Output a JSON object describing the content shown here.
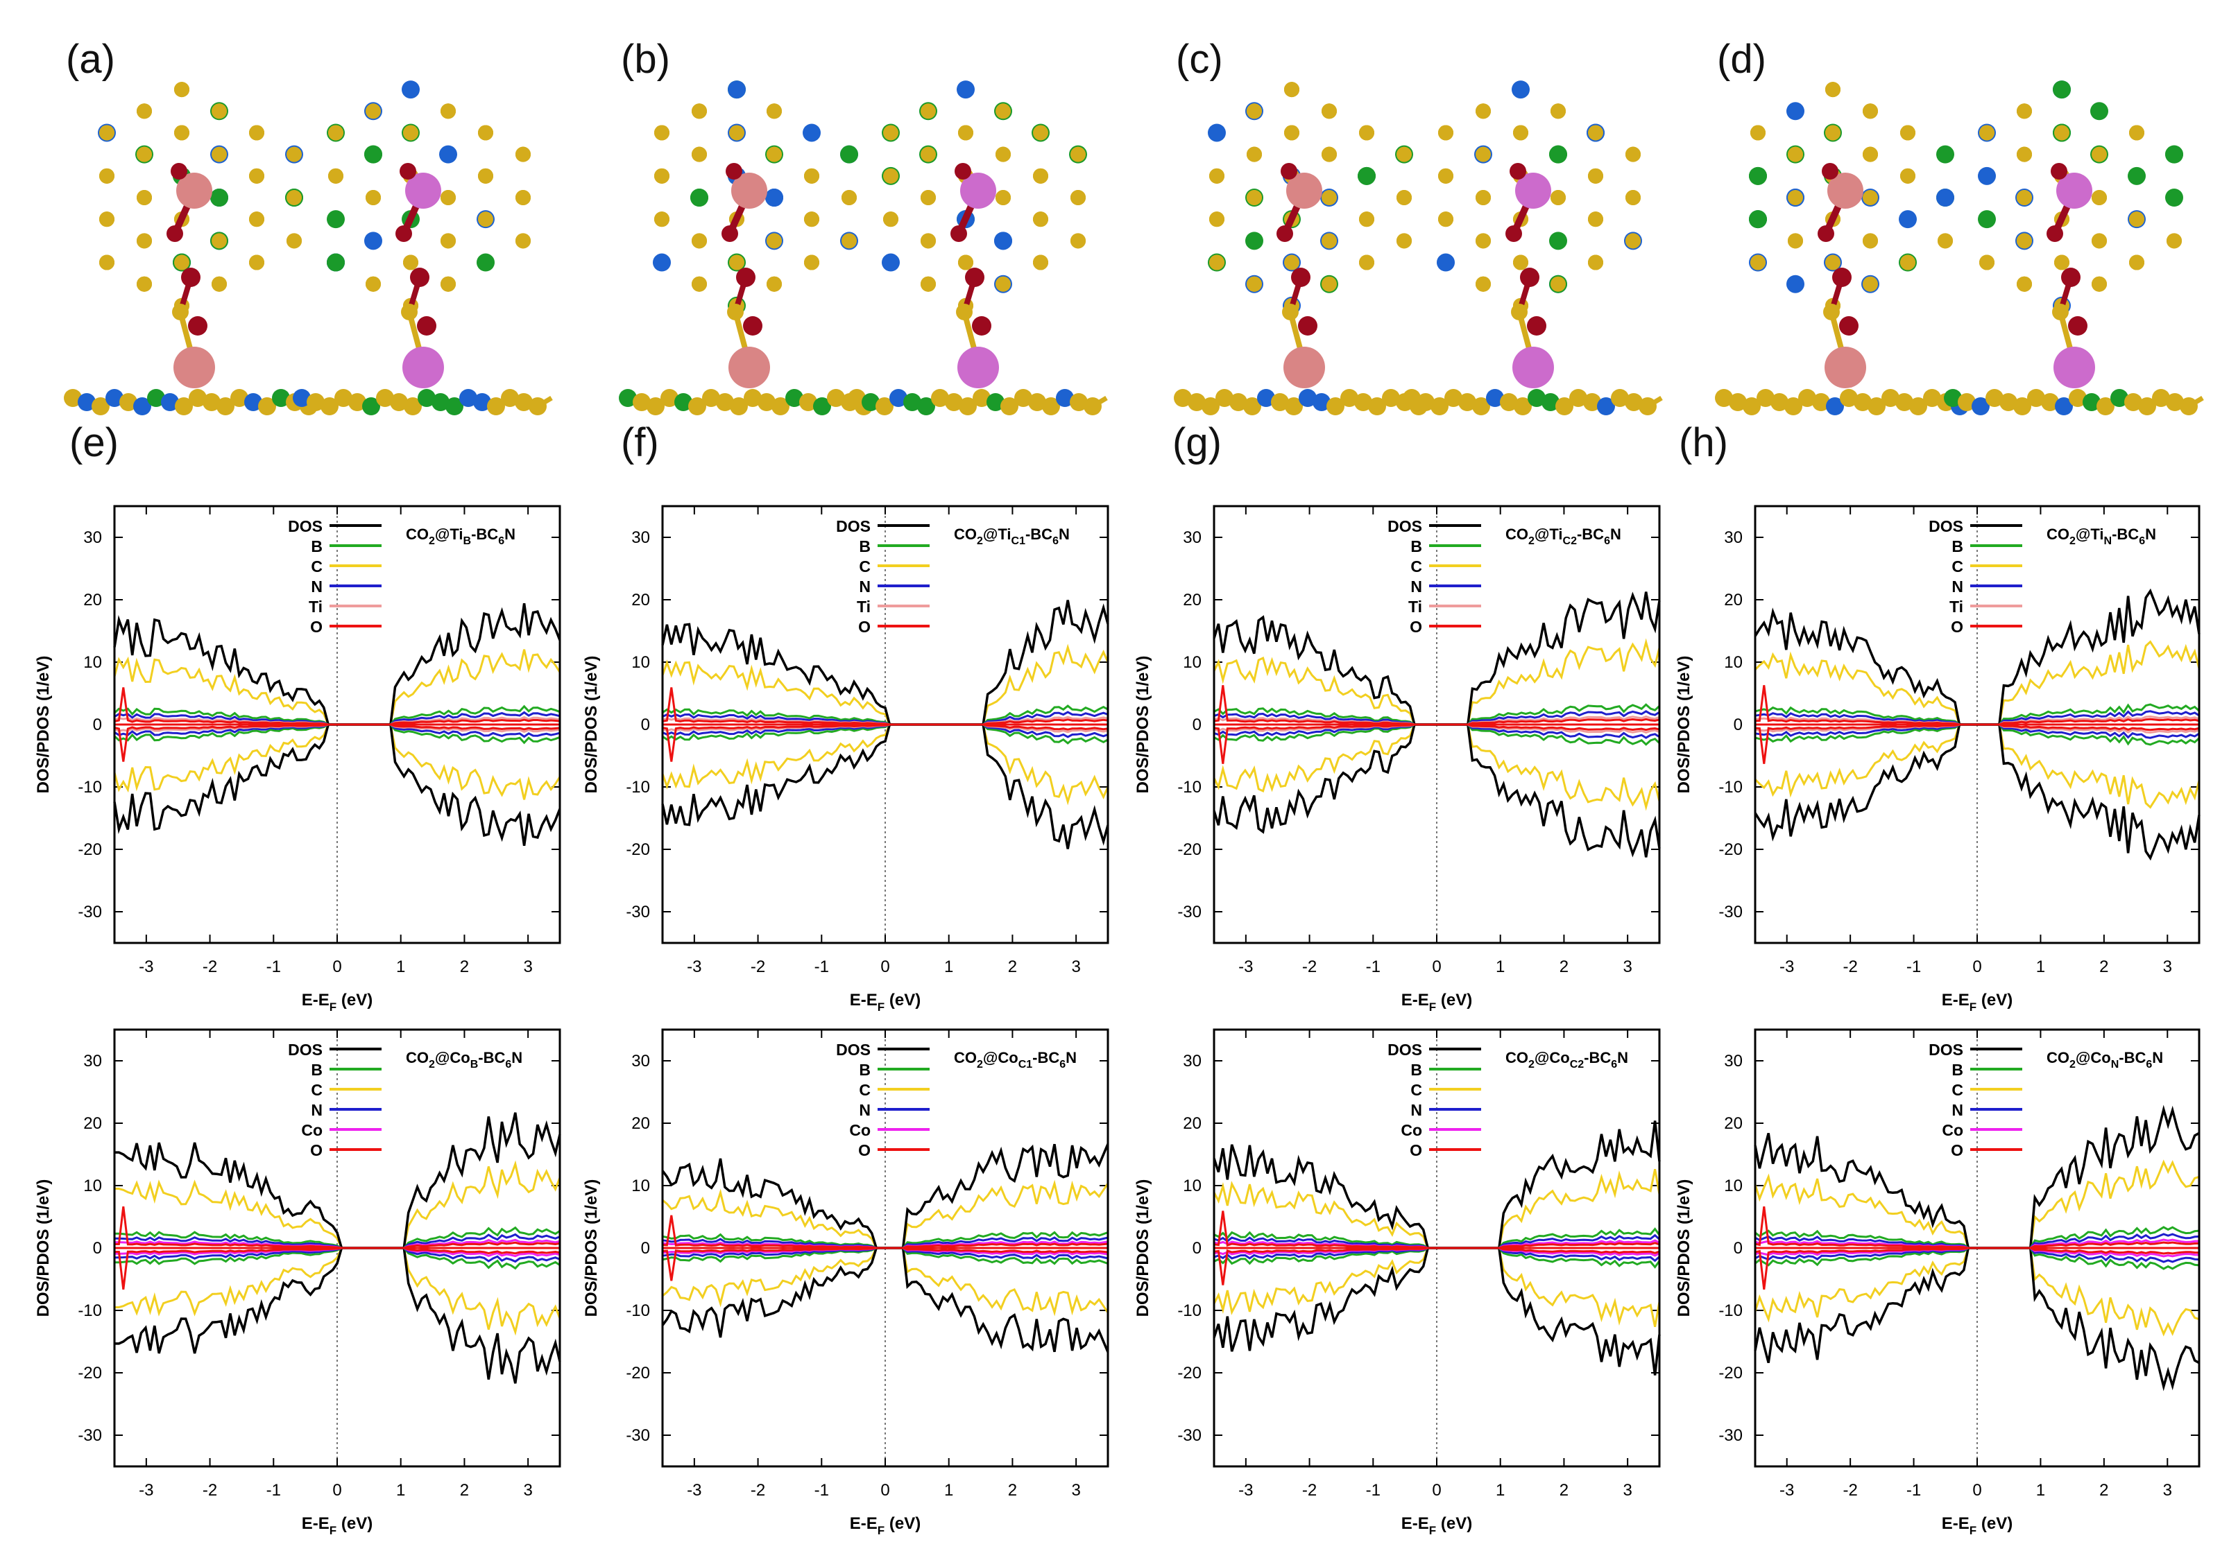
{
  "structure_panels": [
    {
      "label": "(a)",
      "site": "B"
    },
    {
      "label": "(b)",
      "site": "C1"
    },
    {
      "label": "(c)",
      "site": "C2"
    },
    {
      "label": "(d)",
      "site": "N"
    }
  ],
  "colors": {
    "carbon": "#d4ac1c",
    "boron": "#1a9a2a",
    "nitrogen": "#1d62d0",
    "oxygen": "#9b0a1e",
    "titanium": "#d98585",
    "cobalt": "#cc6bcc",
    "DOS": "#000000",
    "B": "#22aa22",
    "C": "#f2cf20",
    "N": "#1f1fcc",
    "Ti": "#ef9c9c",
    "Co": "#ee22ee",
    "O": "#ee1111"
  },
  "chart_data": [
    {
      "panel": "(e)",
      "type": "line",
      "system": "CO2@TiB-BC6N",
      "title_main": "CO",
      "title_sub1": "2",
      "title_mid": "@Ti",
      "title_sub2": "B",
      "title_end": "-BC",
      "title_sub3": "6",
      "title_tail": "N",
      "metal": "Ti",
      "xlabel": "E-E",
      "xlabel_sub": "F",
      "xlabel_unit": " (eV)",
      "ylabel": "DOS/PDOS (1/eV)",
      "xlim": [
        -3.5,
        3.5
      ],
      "ylim": [
        -35,
        35
      ],
      "xticks": [
        -3,
        -2,
        -1,
        0,
        1,
        2,
        3
      ],
      "yticks": [
        -30,
        -20,
        -10,
        0,
        10,
        20,
        30
      ],
      "legend": [
        "DOS",
        "B",
        "C",
        "N",
        "Ti",
        "O"
      ],
      "vb_edge": -0.2,
      "cb_edge": 0.9,
      "peak_dos": 17
    },
    {
      "panel": "(f)",
      "type": "line",
      "system": "CO2@TiC1-BC6N",
      "title_main": "CO",
      "title_sub1": "2",
      "title_mid": "@Ti",
      "title_sub2": "C1",
      "title_end": "-BC",
      "title_sub3": "6",
      "title_tail": "N",
      "metal": "Ti",
      "xlabel": "E-E",
      "xlabel_sub": "F",
      "xlabel_unit": " (eV)",
      "ylabel": "DOS/PDOS (1/eV)",
      "xlim": [
        -3.5,
        3.5
      ],
      "ylim": [
        -35,
        35
      ],
      "xticks": [
        -3,
        -2,
        -1,
        0,
        1,
        2,
        3
      ],
      "yticks": [
        -30,
        -20,
        -10,
        0,
        10,
        20,
        30
      ],
      "legend": [
        "DOS",
        "B",
        "C",
        "N",
        "Ti",
        "O"
      ],
      "vb_edge": 0.0,
      "cb_edge": 1.6,
      "peak_dos": 17
    },
    {
      "panel": "(g)",
      "type": "line",
      "system": "CO2@TiC2-BC6N",
      "title_main": "CO",
      "title_sub1": "2",
      "title_mid": "@Ti",
      "title_sub2": "C2",
      "title_end": "-BC",
      "title_sub3": "6",
      "title_tail": "N",
      "metal": "Ti",
      "xlabel": "E-E",
      "xlabel_sub": "F",
      "xlabel_unit": " (eV)",
      "ylabel": "DOS/PDOS (1/eV)",
      "xlim": [
        -3.5,
        3.5
      ],
      "ylim": [
        -35,
        35
      ],
      "xticks": [
        -3,
        -2,
        -1,
        0,
        1,
        2,
        3
      ],
      "yticks": [
        -30,
        -20,
        -10,
        0,
        10,
        20,
        30
      ],
      "legend": [
        "DOS",
        "B",
        "C",
        "N",
        "Ti",
        "O"
      ],
      "vb_edge": -0.4,
      "cb_edge": 0.5,
      "peak_dos": 18
    },
    {
      "panel": "(h)",
      "type": "line",
      "system": "CO2@TiN-BC6N",
      "title_main": "CO",
      "title_sub1": "2",
      "title_mid": "@Ti",
      "title_sub2": "N",
      "title_end": "-BC",
      "title_sub3": "6",
      "title_tail": "N",
      "metal": "Ti",
      "xlabel": "E-E",
      "xlabel_sub": "F",
      "xlabel_unit": " (eV)",
      "ylabel": "DOS/PDOS (1/eV)",
      "xlim": [
        -3.5,
        3.5
      ],
      "ylim": [
        -35,
        35
      ],
      "xticks": [
        -3,
        -2,
        -1,
        0,
        1,
        2,
        3
      ],
      "yticks": [
        -30,
        -20,
        -10,
        0,
        10,
        20,
        30
      ],
      "legend": [
        "DOS",
        "B",
        "C",
        "N",
        "Ti",
        "O"
      ],
      "vb_edge": -0.3,
      "cb_edge": 0.4,
      "peak_dos": 18
    },
    {
      "panel": "",
      "type": "line",
      "system": "CO2@CoB-BC6N",
      "title_main": "CO",
      "title_sub1": "2",
      "title_mid": "@Co",
      "title_sub2": "B",
      "title_end": "-BC",
      "title_sub3": "6",
      "title_tail": "N",
      "metal": "Co",
      "xlabel": "E-E",
      "xlabel_sub": "F",
      "xlabel_unit": " (eV)",
      "ylabel": "DOS/PDOS (1/eV)",
      "xlim": [
        -3.5,
        3.5
      ],
      "ylim": [
        -35,
        35
      ],
      "xticks": [
        -3,
        -2,
        -1,
        0,
        1,
        2,
        3
      ],
      "yticks": [
        -30,
        -20,
        -10,
        0,
        10,
        20,
        30
      ],
      "legend": [
        "DOS",
        "B",
        "C",
        "N",
        "Co",
        "O"
      ],
      "vb_edge": 0.0,
      "cb_edge": 1.1,
      "peak_dos": 19
    },
    {
      "panel": "",
      "type": "line",
      "system": "CO2@CoC1-BC6N",
      "title_main": "CO",
      "title_sub1": "2",
      "title_mid": "@Co",
      "title_sub2": "C1",
      "title_end": "-BC",
      "title_sub3": "6",
      "title_tail": "N",
      "metal": "Co",
      "xlabel": "E-E",
      "xlabel_sub": "F",
      "xlabel_unit": " (eV)",
      "ylabel": "DOS/PDOS (1/eV)",
      "xlim": [
        -3.5,
        3.5
      ],
      "ylim": [
        -35,
        35
      ],
      "xticks": [
        -3,
        -2,
        -1,
        0,
        1,
        2,
        3
      ],
      "yticks": [
        -30,
        -20,
        -10,
        0,
        10,
        20,
        30
      ],
      "legend": [
        "DOS",
        "B",
        "C",
        "N",
        "Co",
        "O"
      ],
      "vb_edge": -0.2,
      "cb_edge": 0.3,
      "peak_dos": 15
    },
    {
      "panel": "",
      "type": "line",
      "system": "CO2@CoC2-BC6N",
      "title_main": "CO",
      "title_sub1": "2",
      "title_mid": "@Co",
      "title_sub2": "C2",
      "title_end": "-BC",
      "title_sub3": "6",
      "title_tail": "N",
      "metal": "Co",
      "xlabel": "E-E",
      "xlabel_sub": "F",
      "xlabel_unit": " (eV)",
      "ylabel": "DOS/PDOS (1/eV)",
      "xlim": [
        -3.5,
        3.5
      ],
      "ylim": [
        -35,
        35
      ],
      "xticks": [
        -3,
        -2,
        -1,
        0,
        1,
        2,
        3
      ],
      "yticks": [
        -30,
        -20,
        -10,
        0,
        10,
        20,
        30
      ],
      "legend": [
        "DOS",
        "B",
        "C",
        "N",
        "Co",
        "O"
      ],
      "vb_edge": -0.2,
      "cb_edge": 1.0,
      "peak_dos": 17
    },
    {
      "panel": "",
      "type": "line",
      "system": "CO2@CoN-BC6N",
      "title_main": "CO",
      "title_sub1": "2",
      "title_mid": "@Co",
      "title_sub2": "N",
      "title_end": "-BC",
      "title_sub3": "6",
      "title_tail": "N",
      "metal": "Co",
      "xlabel": "E-E",
      "xlabel_sub": "F",
      "xlabel_unit": " (eV)",
      "ylabel": "DOS/PDOS (1/eV)",
      "xlim": [
        -3.5,
        3.5
      ],
      "ylim": [
        -35,
        35
      ],
      "xticks": [
        -3,
        -2,
        -1,
        0,
        1,
        2,
        3
      ],
      "yticks": [
        -30,
        -20,
        -10,
        0,
        10,
        20,
        30
      ],
      "legend": [
        "DOS",
        "B",
        "C",
        "N",
        "Co",
        "O"
      ],
      "vb_edge": -0.2,
      "cb_edge": 0.9,
      "peak_dos": 19
    }
  ]
}
